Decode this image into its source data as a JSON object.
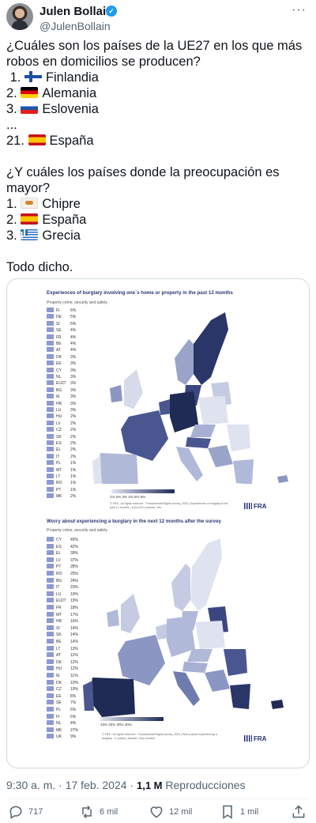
{
  "author": {
    "name": "Julen Bollain",
    "handle": "@JulenBollain",
    "verified_icon": "verified-badge-icon",
    "more_icon": "more-options-icon"
  },
  "tweet": {
    "line1": "¿Cuáles son los países de la UE27 en los que más",
    "line2": "robos en domicilios se producen?",
    "rank1": " 1. ",
    "rank1_country": "Finlandia",
    "rank2": "2. ",
    "rank2_country": "Alemania",
    "rank3": "3. ",
    "rank3_country": "Eslovenia",
    "ellipsis": "...",
    "rank21": "21. ",
    "rank21_country": "España",
    "q2_line1": "¿Y cuáles los países donde la preocupación es",
    "q2_line2": "mayor?",
    "w1": "1. ",
    "w1_country": "Chipre",
    "w2": "2. ",
    "w2_country": "España",
    "w3": "3. ",
    "w3_country": "Grecia",
    "closing": "Todo dicho."
  },
  "image": {
    "panel1": {
      "title": "Experiences of burglary involving one´s home or property in the past 12 months",
      "subtitle": "Property crime, security and safety",
      "rows": [
        {
          "code": "FI",
          "value": "6%"
        },
        {
          "code": "DE",
          "value": "5%"
        },
        {
          "code": "SI",
          "value": "5%"
        },
        {
          "code": "SE",
          "value": "4%"
        },
        {
          "code": "FR",
          "value": "4%"
        },
        {
          "code": "BE",
          "value": "4%"
        },
        {
          "code": "AT",
          "value": "4%"
        },
        {
          "code": "DK",
          "value": "3%"
        },
        {
          "code": "EE",
          "value": "3%"
        },
        {
          "code": "CY",
          "value": "3%"
        },
        {
          "code": "NL",
          "value": "3%"
        },
        {
          "code": "EU27",
          "value": "3%"
        },
        {
          "code": "BG",
          "value": "3%"
        },
        {
          "code": "IE",
          "value": "3%"
        },
        {
          "code": "HR",
          "value": "3%"
        },
        {
          "code": "LU",
          "value": "3%"
        },
        {
          "code": "HU",
          "value": "2%"
        },
        {
          "code": "LV",
          "value": "2%"
        },
        {
          "code": "CZ",
          "value": "2%"
        },
        {
          "code": "SK",
          "value": "2%"
        },
        {
          "code": "ES",
          "value": "2%"
        },
        {
          "code": "EL",
          "value": "2%"
        },
        {
          "code": "IT",
          "value": "2%"
        },
        {
          "code": "PL",
          "value": "1%"
        },
        {
          "code": "MT",
          "value": "1%"
        },
        {
          "code": "LT",
          "value": "1%"
        },
        {
          "code": "RO",
          "value": "1%"
        },
        {
          "code": "PT",
          "value": "1%"
        },
        {
          "code": "MK",
          "value": "2%"
        }
      ],
      "scale_labels": "1%   2%   3%   4%   5%   6%",
      "fine_print": "© FRA - All rights reserved - Fundamental Rights survey, 2020 | Experiences of burglary in the past 12 months - & (to) EU | Answer: Yes",
      "logo": "FRA"
    },
    "panel2": {
      "title": "Worry about experiencing a burglary in the next 12 months after the survey",
      "subtitle": "Property crime, security and safety",
      "rows": [
        {
          "code": "CY",
          "value": "45%"
        },
        {
          "code": "ES",
          "value": "42%"
        },
        {
          "code": "EL",
          "value": "39%"
        },
        {
          "code": "LV",
          "value": "37%"
        },
        {
          "code": "PT",
          "value": "28%"
        },
        {
          "code": "RO",
          "value": "25%"
        },
        {
          "code": "BG",
          "value": "24%"
        },
        {
          "code": "IT",
          "value": "23%"
        },
        {
          "code": "LU",
          "value": "19%"
        },
        {
          "code": "EU27",
          "value": "19%"
        },
        {
          "code": "FR",
          "value": "18%"
        },
        {
          "code": "MT",
          "value": "17%"
        },
        {
          "code": "HR",
          "value": "16%"
        },
        {
          "code": "SI",
          "value": "14%"
        },
        {
          "code": "SK",
          "value": "14%"
        },
        {
          "code": "BE",
          "value": "14%"
        },
        {
          "code": "LT",
          "value": "13%"
        },
        {
          "code": "AT",
          "value": "12%"
        },
        {
          "code": "DE",
          "value": "12%"
        },
        {
          "code": "HU",
          "value": "12%"
        },
        {
          "code": "IE",
          "value": "11%"
        },
        {
          "code": "DK",
          "value": "10%"
        },
        {
          "code": "CZ",
          "value": "10%"
        },
        {
          "code": "EE",
          "value": "8%"
        },
        {
          "code": "SE",
          "value": "7%"
        },
        {
          "code": "PL",
          "value": "6%"
        },
        {
          "code": "FI",
          "value": "6%"
        },
        {
          "code": "NL",
          "value": "4%"
        },
        {
          "code": "MK",
          "value": "27%"
        },
        {
          "code": "UK",
          "value": "9%"
        }
      ],
      "scale_labels": "10%   20%   30%   40%",
      "fine_print": "© FRA - All rights reserved - Fundamental Rights survey, 2020 | Worry about experiencing a burglary - & (other) | Answer: Very worried",
      "logo": "FRA"
    }
  },
  "meta": {
    "time_date": "9:30 a. m. · 17 feb. 2024 · ",
    "views_count": "1,1 M",
    "views_label": " Reproducciones"
  },
  "actions": {
    "reply_count": "717",
    "retweet_count": "6 mil",
    "like_count": "12 mil",
    "bookmark_count": "1 mil"
  },
  "colors": {
    "text": "#0f1419",
    "secondary": "#536471",
    "verified": "#1d9bf0",
    "map_light": "#dfe3f0",
    "map_dark": "#1f2a55"
  }
}
